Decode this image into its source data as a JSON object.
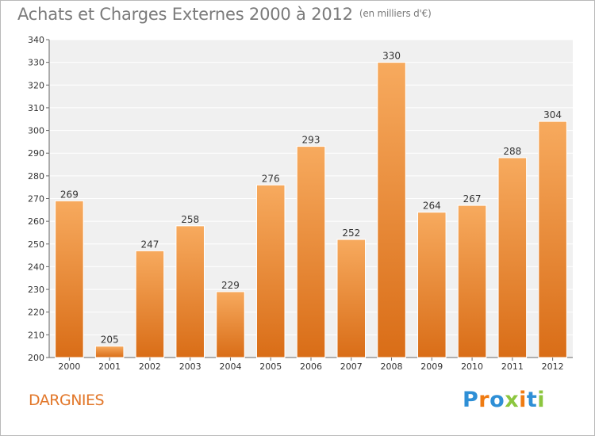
{
  "header": {
    "title": "Achats et Charges Externes 2000 à 2012",
    "subtitle": "(en milliers d'€)"
  },
  "footer": {
    "commune": "DARGNIES",
    "logo_letters": [
      {
        "char": "P",
        "color": "#2e8fd6"
      },
      {
        "char": "r",
        "color": "#ef7b12"
      },
      {
        "char": "o",
        "color": "#2e8fd6"
      },
      {
        "char": "x",
        "color": "#8cc63f"
      },
      {
        "char": "i",
        "color": "#ef7b12"
      },
      {
        "char": "t",
        "color": "#2e8fd6"
      },
      {
        "char": "i",
        "color": "#8cc63f"
      }
    ]
  },
  "chart_data": {
    "type": "bar",
    "categories": [
      "2000",
      "2001",
      "2002",
      "2003",
      "2004",
      "2005",
      "2006",
      "2007",
      "2008",
      "2009",
      "2010",
      "2011",
      "2012"
    ],
    "values": [
      269,
      205,
      247,
      258,
      229,
      276,
      293,
      252,
      330,
      264,
      267,
      288,
      304
    ],
    "title": "Achats et Charges Externes 2000 à 2012",
    "subtitle": "(en milliers d'€)",
    "ylim": [
      200,
      340
    ],
    "yticks": [
      200,
      210,
      220,
      230,
      240,
      250,
      260,
      270,
      280,
      290,
      300,
      310,
      320,
      330,
      340
    ],
    "grid": "horizontal",
    "legend": "none",
    "colors": {
      "bar_top": "#f7aa5e",
      "bar_bottom": "#d96d17",
      "bar_edge": "#ffffff",
      "plot_bg": "#f0f0f0",
      "grid": "#ffffff",
      "axis": "#666666"
    }
  }
}
